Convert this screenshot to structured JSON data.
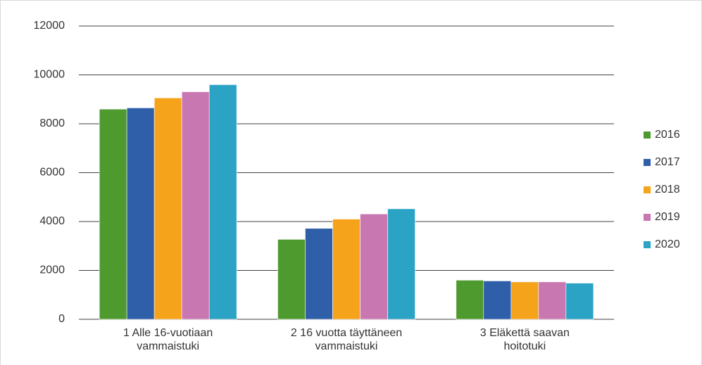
{
  "chart_data": {
    "type": "bar",
    "categories": [
      "1 Alle 16-vuotiaan vammaistuki",
      "2 16 vuotta täyttäneen vammaistuki",
      "3 Eläkettä saavan hoitotuki"
    ],
    "series": [
      {
        "name": "2016",
        "color": "#4f9a2f",
        "values": [
          8600,
          3270,
          1600
        ]
      },
      {
        "name": "2017",
        "color": "#2f5fa9",
        "values": [
          8650,
          3720,
          1570
        ]
      },
      {
        "name": "2018",
        "color": "#f6a31c",
        "values": [
          9060,
          4100,
          1530
        ]
      },
      {
        "name": "2019",
        "color": "#c977b0",
        "values": [
          9310,
          4310,
          1530
        ]
      },
      {
        "name": "2020",
        "color": "#2aa3c4",
        "values": [
          9600,
          4520,
          1480
        ]
      }
    ],
    "ylim": [
      0,
      12000
    ],
    "yticks": [
      0,
      2000,
      4000,
      6000,
      8000,
      10000,
      12000
    ],
    "grid": true,
    "legend": "right"
  }
}
